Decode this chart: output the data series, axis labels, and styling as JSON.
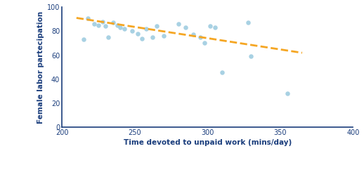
{
  "scatter_x": [
    215,
    218,
    222,
    225,
    228,
    230,
    232,
    235,
    238,
    240,
    243,
    248,
    252,
    255,
    258,
    262,
    265,
    270,
    280,
    285,
    290,
    295,
    298,
    302,
    305,
    310,
    328,
    330,
    355
  ],
  "scatter_y": [
    73,
    91,
    86,
    85,
    88,
    84,
    75,
    87,
    85,
    83,
    82,
    80,
    78,
    74,
    82,
    75,
    84,
    76,
    86,
    83,
    77,
    75,
    70,
    84,
    83,
    46,
    87,
    59,
    28
  ],
  "trend_x": [
    210,
    365
  ],
  "trend_y": [
    91,
    62
  ],
  "scatter_color": "#9fcce0",
  "trend_color": "#f5a623",
  "xlabel": "Time devoted to unpaid work (mins/day)",
  "ylabel": "Female labor partecipation",
  "xlim": [
    200,
    400
  ],
  "ylim": [
    0,
    100
  ],
  "xticks": [
    200,
    250,
    300,
    350,
    400
  ],
  "yticks": [
    0,
    20,
    40,
    60,
    80,
    100
  ],
  "axis_color": "#1a3d7c",
  "label_fontsize": 7.5,
  "tick_fontsize": 7
}
